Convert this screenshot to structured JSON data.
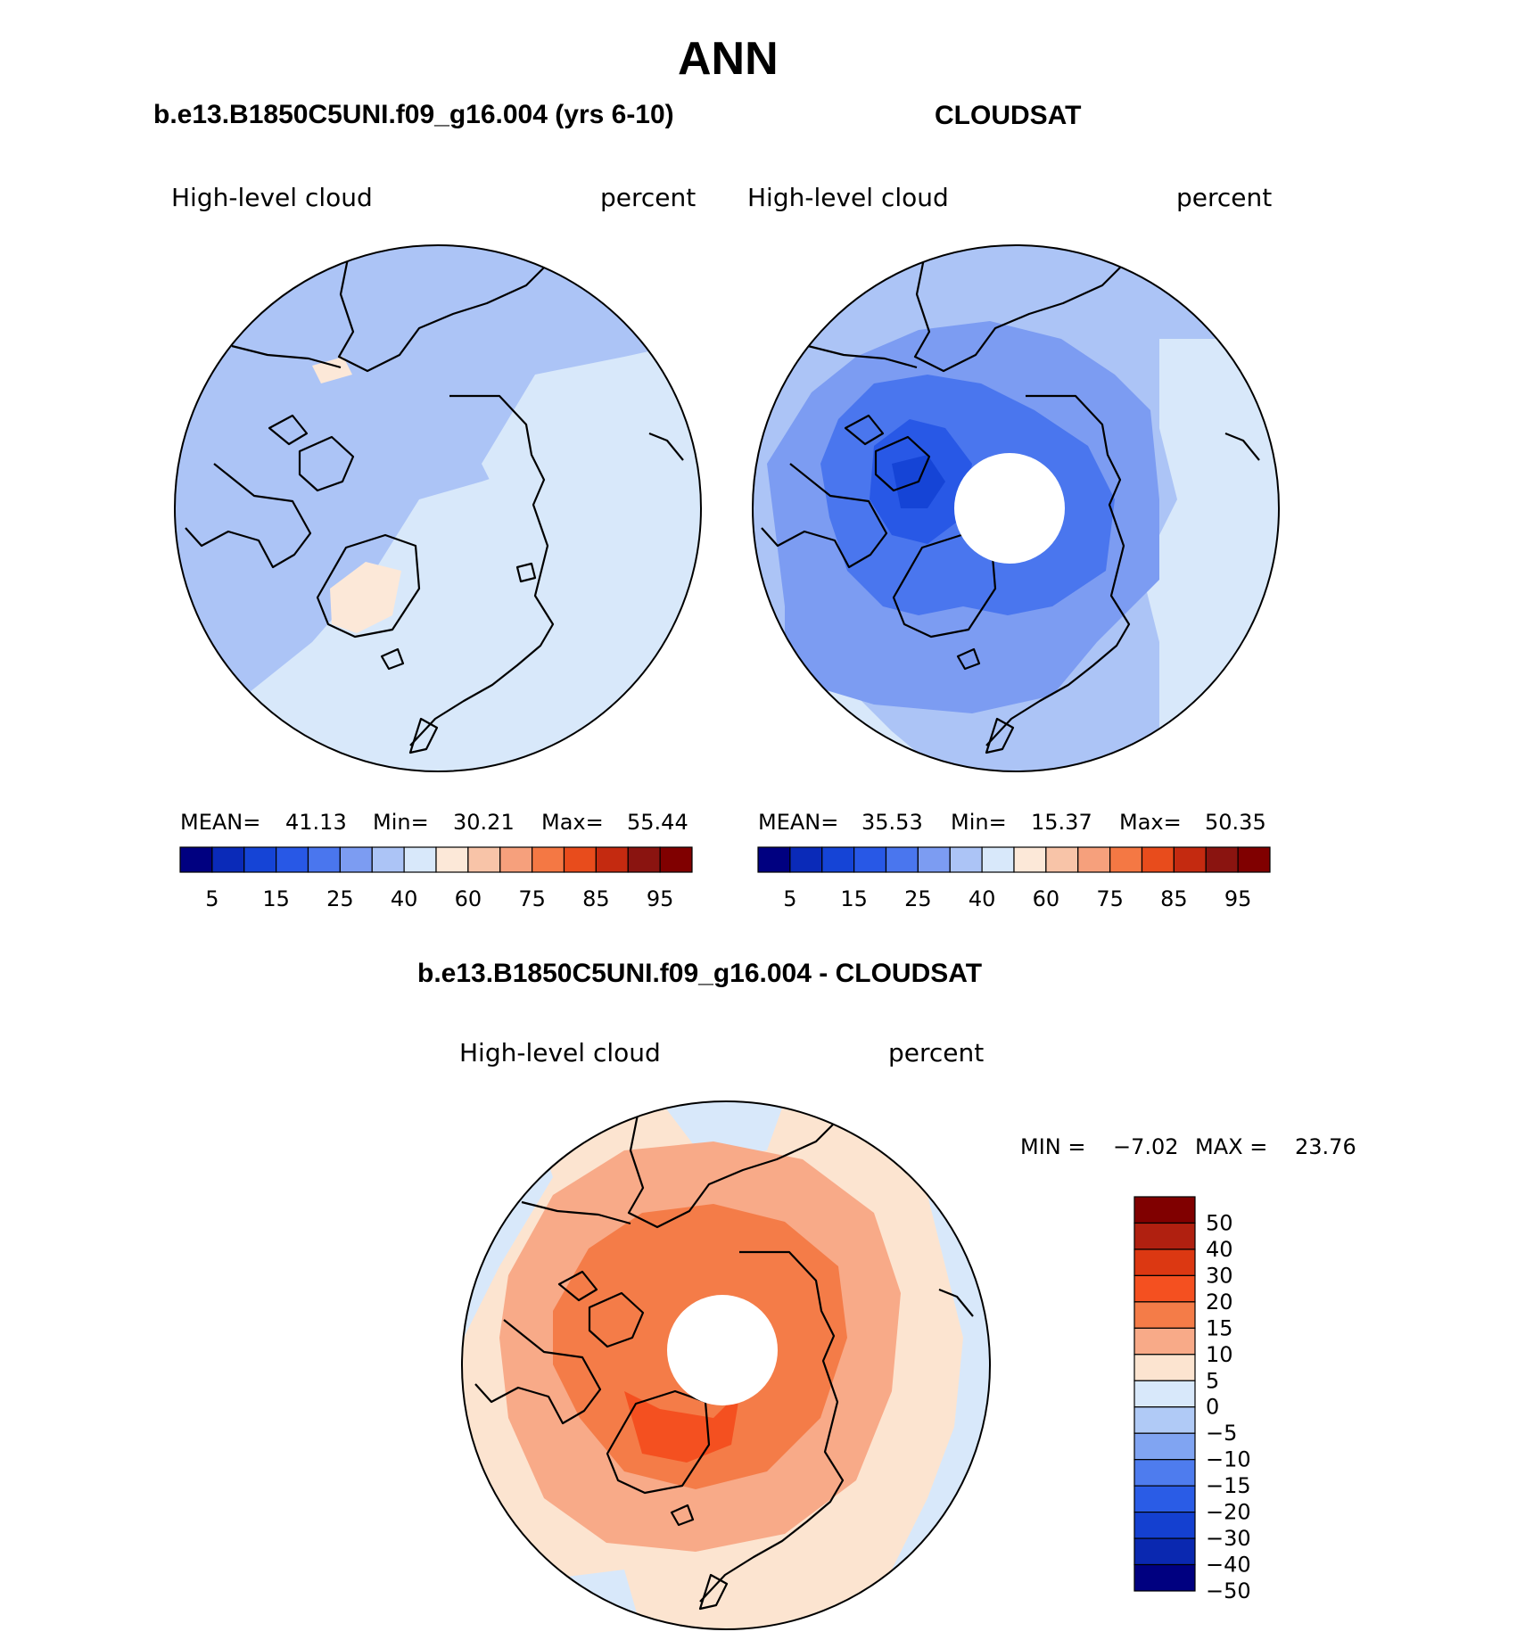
{
  "figure": {
    "title": "ANN",
    "model_title": "b.e13.B1850C5UNI.f09_g16.004 (yrs 6-10)",
    "obs_title": "CLOUDSAT",
    "diff_title": "b.e13.B1850C5UNI.f09_g16.004 - CLOUDSAT"
  },
  "chart_data": [
    {
      "type": "heatmap",
      "projection": "north-polar-stereographic",
      "variable": "High-level cloud",
      "units": "percent",
      "stats": {
        "mean_label": "MEAN=",
        "mean": "41.13",
        "min_label": "Min=",
        "min": "30.21",
        "max_label": "Max=",
        "max": "55.44"
      },
      "contour_levels": [
        5,
        10,
        15,
        20,
        25,
        30,
        40,
        50,
        60,
        70,
        75,
        80,
        85,
        90,
        95
      ],
      "colorbar_labels": [
        "5",
        "15",
        "25",
        "40",
        "60",
        "75",
        "85",
        "95"
      ],
      "colors": [
        "#000080",
        "#0A2AB8",
        "#1544D6",
        "#2858E6",
        "#4A76EE",
        "#7C9CF2",
        "#ACC4F6",
        "#D8E8FA",
        "#FCE8D8",
        "#F8C4A8",
        "#F6A07C",
        "#F47844",
        "#E84C1C",
        "#C42A10",
        "#8A1410",
        "#800000"
      ]
    },
    {
      "type": "heatmap",
      "projection": "north-polar-stereographic",
      "variable": "High-level cloud",
      "units": "percent",
      "stats": {
        "mean_label": "MEAN=",
        "mean": "35.53",
        "min_label": "Min=",
        "min": "15.37",
        "max_label": "Max=",
        "max": "50.35"
      },
      "contour_levels": [
        5,
        10,
        15,
        20,
        25,
        30,
        40,
        50,
        60,
        70,
        75,
        80,
        85,
        90,
        95
      ],
      "colorbar_labels": [
        "5",
        "15",
        "25",
        "40",
        "60",
        "75",
        "85",
        "95"
      ],
      "colors": [
        "#000080",
        "#0A2AB8",
        "#1544D6",
        "#2858E6",
        "#4A76EE",
        "#7C9CF2",
        "#ACC4F6",
        "#D8E8FA",
        "#FCE8D8",
        "#F8C4A8",
        "#F6A07C",
        "#F47844",
        "#E84C1C",
        "#C42A10",
        "#8A1410",
        "#800000"
      ]
    },
    {
      "type": "heatmap",
      "projection": "north-polar-stereographic",
      "variable": "High-level cloud",
      "units": "percent",
      "stats": {
        "min_label": "MIN =",
        "min": "−7.02",
        "max_label": "MAX =",
        "max": "23.76"
      },
      "contour_levels": [
        -50,
        -40,
        -30,
        -20,
        -15,
        -10,
        -5,
        0,
        5,
        10,
        15,
        20,
        30,
        40,
        50
      ],
      "colorbar_labels": [
        "50",
        "40",
        "30",
        "20",
        "15",
        "10",
        "5",
        "0",
        "−5",
        "−10",
        "−15",
        "−20",
        "−30",
        "−40",
        "−50"
      ],
      "colors": [
        "#800000",
        "#B02010",
        "#DC3812",
        "#F45020",
        "#F47C48",
        "#F8AA88",
        "#FCE4D0",
        "#D8E8FA",
        "#B0CAF6",
        "#80A4F2",
        "#4E7CEE",
        "#2A5CE6",
        "#1440D0",
        "#0A28B0",
        "#000080"
      ]
    }
  ]
}
